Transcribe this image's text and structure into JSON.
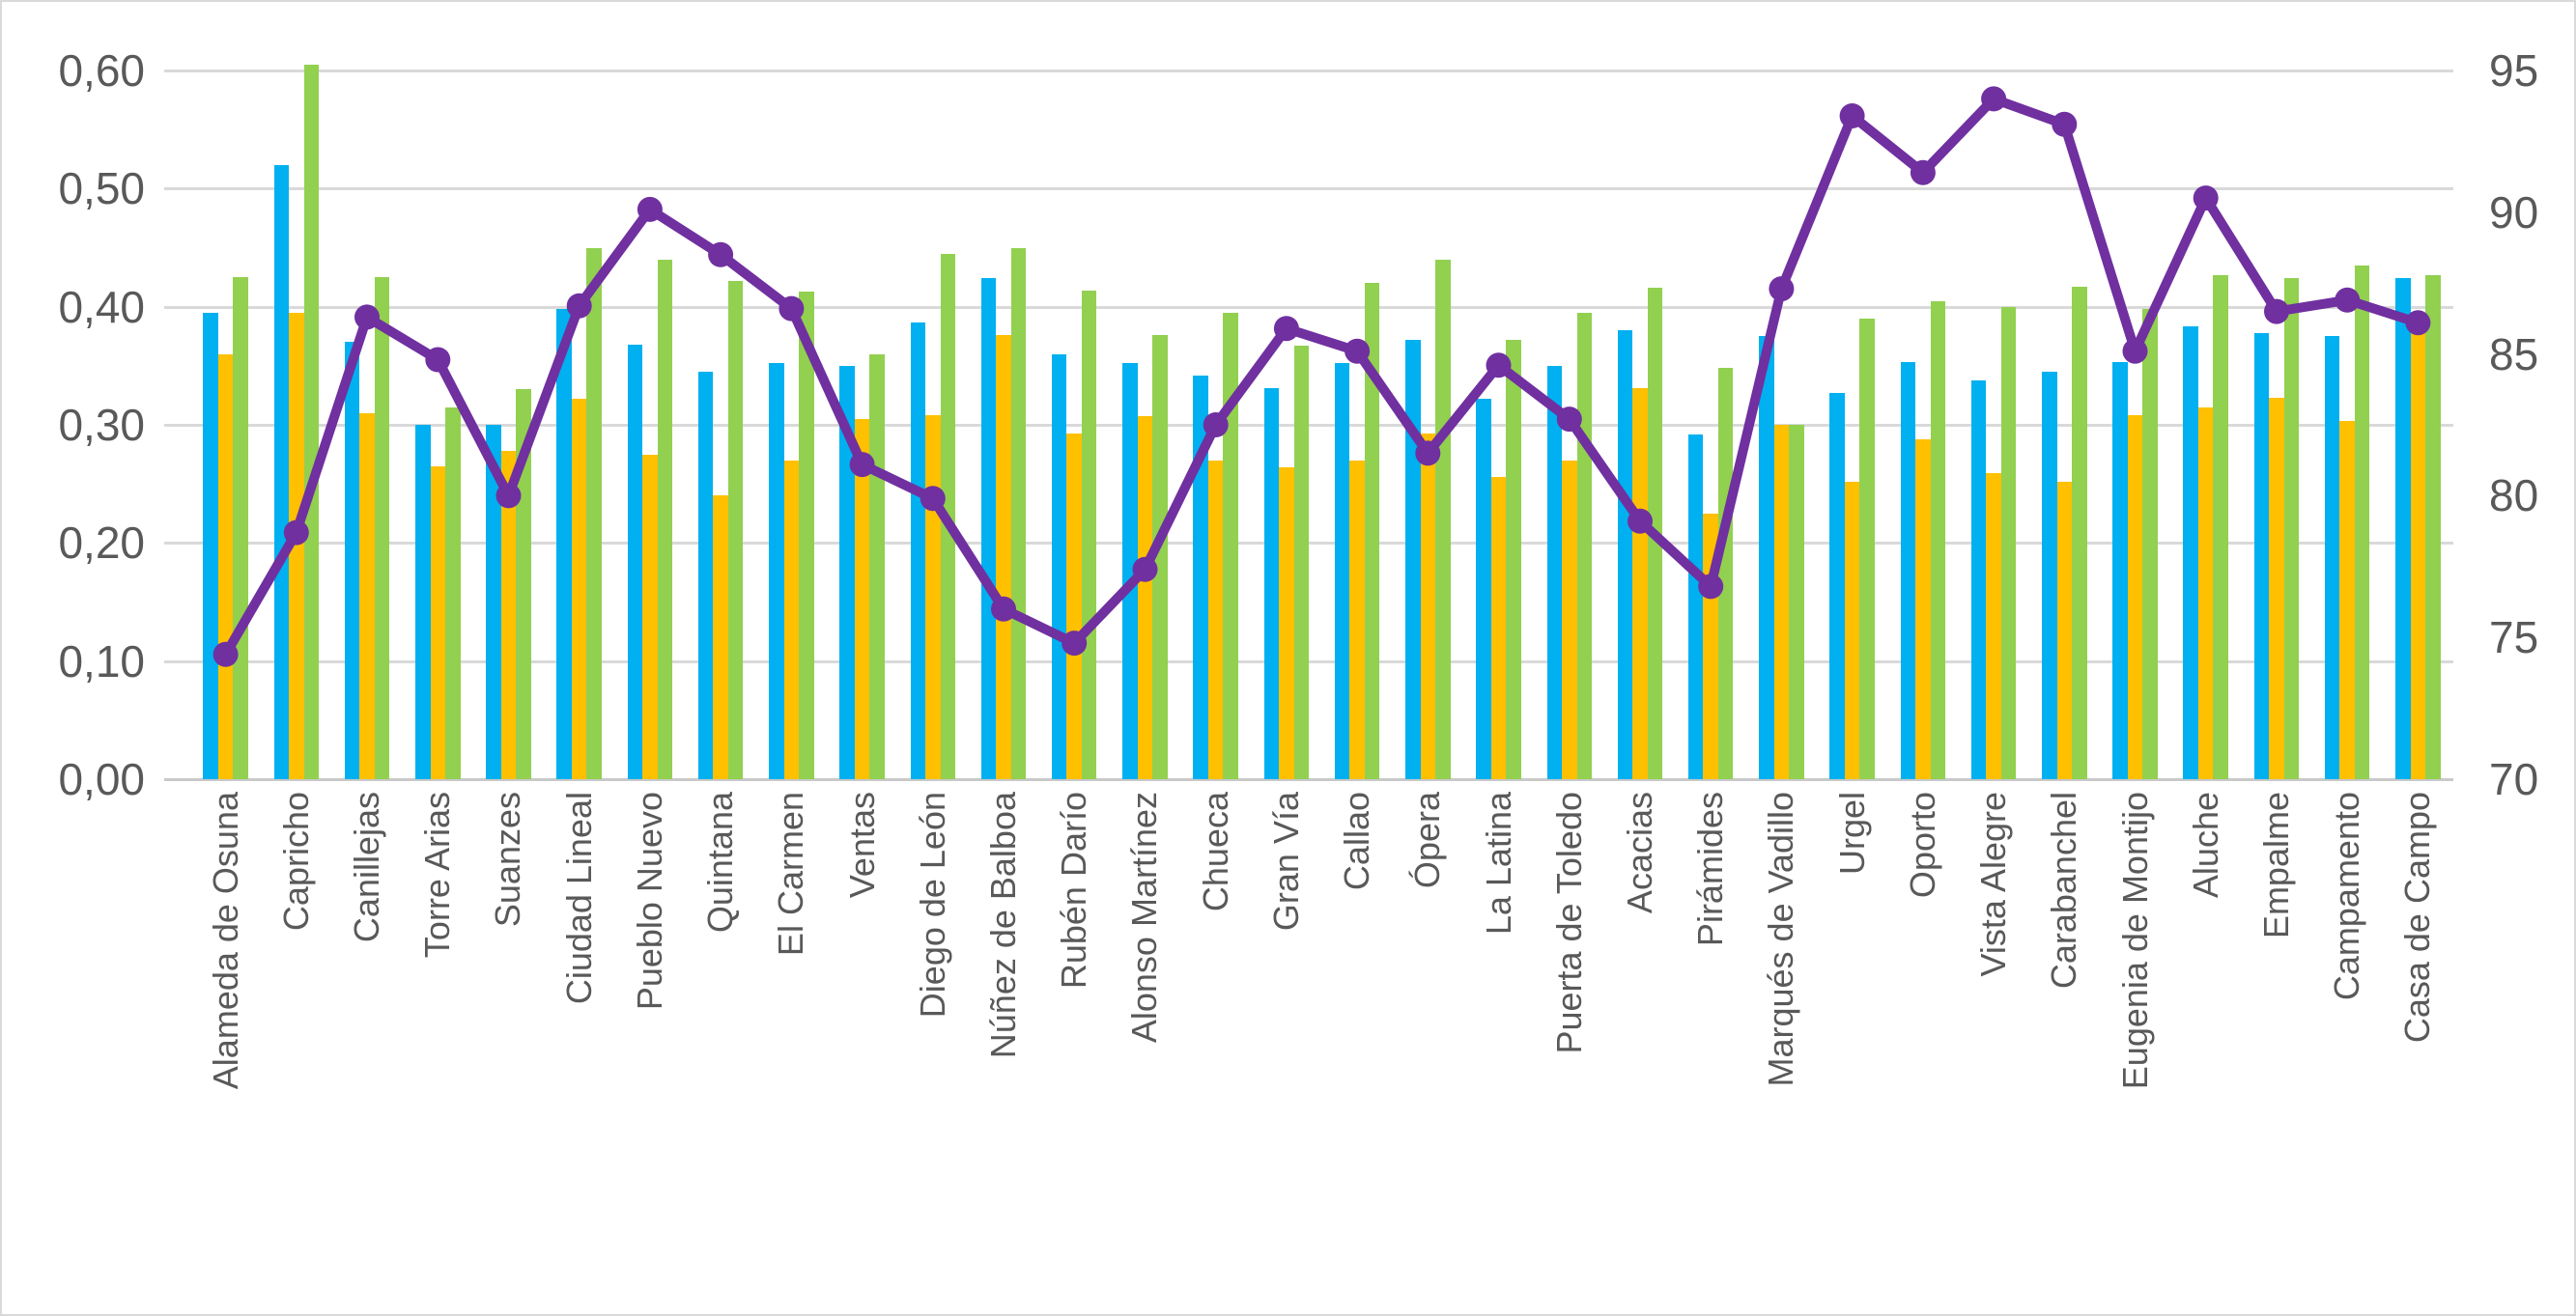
{
  "chart_data": {
    "type": "combo-bar-line",
    "title": "",
    "categories": [
      "Alameda de Osuna",
      "Capricho",
      "Canillejas",
      "Torre Arias",
      "Suanzes",
      "Ciudad Lineal",
      "Pueblo Nuevo",
      "Quintana",
      "El Carmen",
      "Ventas",
      "Diego de León",
      "Núñez de Balboa",
      "Rubén Darío",
      "Alonso Martínez",
      "Chueca",
      "Gran Vía",
      "Callao",
      "Ópera",
      "La Latina",
      "Puerta de Toledo",
      "Acacias",
      "Pirámides",
      "Marqués de Vadillo",
      "Urgel",
      "Oporto",
      "Vista Alegre",
      "Carabanchel",
      "Eugenia de Montijo",
      "Aluche",
      "Empalme",
      "Campamento",
      "Casa de Campo"
    ],
    "series": [
      {
        "name": "blue_bars",
        "type": "bar",
        "axis": "left",
        "color": "#00B0F0",
        "values": [
          0.395,
          0.52,
          0.37,
          0.3,
          0.3,
          0.398,
          0.368,
          0.345,
          0.352,
          0.35,
          0.387,
          0.424,
          0.36,
          0.352,
          0.342,
          0.331,
          0.352,
          0.372,
          0.322,
          0.35,
          0.38,
          0.292,
          0.375,
          0.327,
          0.353,
          0.338,
          0.345,
          0.353,
          0.383,
          0.378,
          0.375,
          0.424
        ]
      },
      {
        "name": "yellow_bars",
        "type": "bar",
        "axis": "left",
        "color": "#FFC000",
        "values": [
          0.36,
          0.395,
          0.31,
          0.265,
          0.278,
          0.322,
          0.275,
          0.24,
          0.27,
          0.305,
          0.308,
          0.376,
          0.293,
          0.307,
          0.27,
          0.264,
          0.27,
          0.293,
          0.256,
          0.27,
          0.331,
          0.225,
          0.3,
          0.252,
          0.288,
          0.259,
          0.252,
          0.308,
          0.315,
          0.323,
          0.303,
          0.39
        ]
      },
      {
        "name": "green_bars",
        "type": "bar",
        "axis": "left",
        "color": "#92D050",
        "values": [
          0.425,
          0.605,
          0.425,
          0.315,
          0.33,
          0.45,
          0.44,
          0.422,
          0.413,
          0.36,
          0.445,
          0.45,
          0.414,
          0.376,
          0.395,
          0.367,
          0.42,
          0.44,
          0.372,
          0.395,
          0.416,
          0.348,
          0.3,
          0.39,
          0.405,
          0.4,
          0.417,
          0.398,
          0.427,
          0.424,
          0.435,
          0.427
        ]
      },
      {
        "name": "purple_line",
        "type": "line",
        "axis": "right",
        "color": "#7030A0",
        "values": [
          74.4,
          78.7,
          86.3,
          84.8,
          80.0,
          86.7,
          90.1,
          88.5,
          86.6,
          81.1,
          79.9,
          76.0,
          74.8,
          77.4,
          82.5,
          85.9,
          85.1,
          81.5,
          84.6,
          82.7,
          79.1,
          76.8,
          87.3,
          93.4,
          91.4,
          94.0,
          93.1,
          85.1,
          90.5,
          86.5,
          86.9,
          86.1
        ]
      }
    ],
    "left_axis": {
      "min": 0,
      "max": 0.6,
      "tick_labels": [
        "0,00",
        "0,10",
        "0,20",
        "0,30",
        "0,40",
        "0,50",
        "0,60"
      ]
    },
    "right_axis": {
      "min": 70,
      "max": 95,
      "tick_labels": [
        "70",
        "75",
        "80",
        "85",
        "90",
        "95"
      ]
    },
    "grid": true,
    "legend": "none"
  },
  "colors": {
    "background": "#FFFFFF",
    "border": "#D9D9D9",
    "gridline": "#D9D9D9",
    "axis_text": "#595959"
  }
}
